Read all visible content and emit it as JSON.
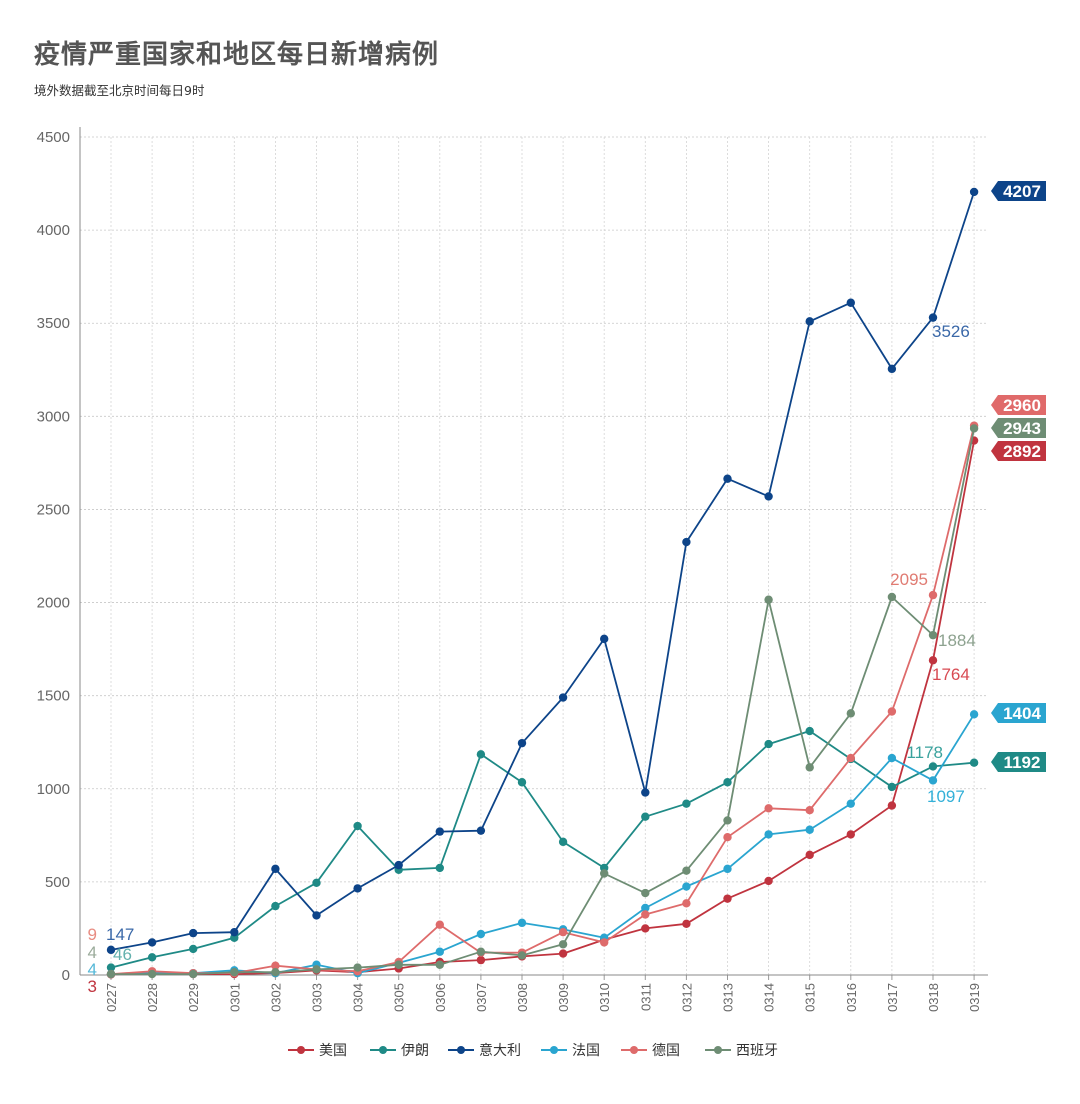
{
  "title": "疫情严重国家和地区每日新增病例",
  "subtitle": "境外数据截至北京时间每日9时",
  "chart_data": {
    "type": "line",
    "title": "疫情严重国家和地区每日新增病例",
    "subtitle": "境外数据截至北京时间每日9时",
    "xlabel": "",
    "ylabel": "",
    "ylim": [
      0,
      4500
    ],
    "yticks": [
      0,
      500,
      1000,
      1500,
      2000,
      2500,
      3000,
      3500,
      4000,
      4500
    ],
    "grid": true,
    "legend_position": "bottom-center",
    "categories": [
      "0227",
      "0228",
      "0229",
      "0301",
      "0302",
      "0303",
      "0304",
      "0305",
      "0306",
      "0307",
      "0308",
      "0309",
      "0310",
      "0311",
      "0312",
      "0313",
      "0314",
      "0315",
      "0316",
      "0317",
      "0318",
      "0319"
    ],
    "series": [
      {
        "name": "美国",
        "color": "#c0343f",
        "values": [
          3,
          10,
          5,
          5,
          10,
          25,
          15,
          35,
          70,
          80,
          100,
          115,
          190,
          250,
          275,
          410,
          505,
          645,
          755,
          910,
          1690,
          2870
        ]
      },
      {
        "name": "伊朗",
        "color": "#1f8a86",
        "values": [
          40,
          95,
          140,
          200,
          370,
          495,
          800,
          565,
          575,
          1185,
          1035,
          715,
          575,
          850,
          920,
          1035,
          1240,
          1310,
          1160,
          1010,
          1120,
          1140
        ]
      },
      {
        "name": "意大利",
        "color": "#0d4489",
        "values": [
          135,
          175,
          225,
          230,
          570,
          320,
          465,
          590,
          770,
          775,
          1245,
          1490,
          1805,
          980,
          2325,
          2665,
          2570,
          3510,
          3610,
          3255,
          3530,
          4205
        ]
      },
      {
        "name": "法国",
        "color": "#2aa5d0",
        "values": [
          5,
          10,
          10,
          25,
          10,
          55,
          10,
          65,
          125,
          220,
          280,
          245,
          200,
          360,
          475,
          570,
          755,
          780,
          920,
          1165,
          1045,
          1400
        ]
      },
      {
        "name": "德国",
        "color": "#de6b6b",
        "values": [
          5,
          20,
          10,
          10,
          50,
          30,
          20,
          70,
          270,
          120,
          120,
          230,
          175,
          325,
          385,
          740,
          895,
          885,
          1165,
          1415,
          2040,
          2950
        ]
      },
      {
        "name": "西班牙",
        "color": "#6e8d74",
        "values": [
          5,
          5,
          5,
          15,
          15,
          30,
          40,
          55,
          55,
          125,
          105,
          165,
          545,
          440,
          560,
          830,
          2015,
          1115,
          1405,
          2030,
          1825,
          2935
        ]
      }
    ],
    "annotations": [
      {
        "text": "9",
        "color": "#e88c82"
      },
      {
        "text": "147",
        "color": "#3a68a8"
      },
      {
        "text": "4",
        "color": "#9bab9b"
      },
      {
        "text": "46",
        "color": "#62b0ad"
      },
      {
        "text": "4",
        "color": "#55b8d8"
      },
      {
        "text": "3",
        "color": "#c0343f"
      },
      {
        "text": "3526",
        "color": "#3a68a8"
      },
      {
        "text": "2095",
        "color": "#e07b72"
      },
      {
        "text": "1884",
        "color": "#8da28f"
      },
      {
        "text": "1764",
        "color": "#d84a52"
      },
      {
        "text": "1178",
        "color": "#3aa29d"
      },
      {
        "text": "1097",
        "color": "#33b0d8"
      }
    ],
    "end_labels": [
      {
        "text": "4207",
        "color": "#0d4489"
      },
      {
        "text": "2960",
        "color": "#e06a6a"
      },
      {
        "text": "2943",
        "color": "#6e8d74"
      },
      {
        "text": "2892",
        "color": "#c0343f"
      },
      {
        "text": "1404",
        "color": "#2aa5d0"
      },
      {
        "text": "1192",
        "color": "#1f8a86"
      }
    ]
  }
}
